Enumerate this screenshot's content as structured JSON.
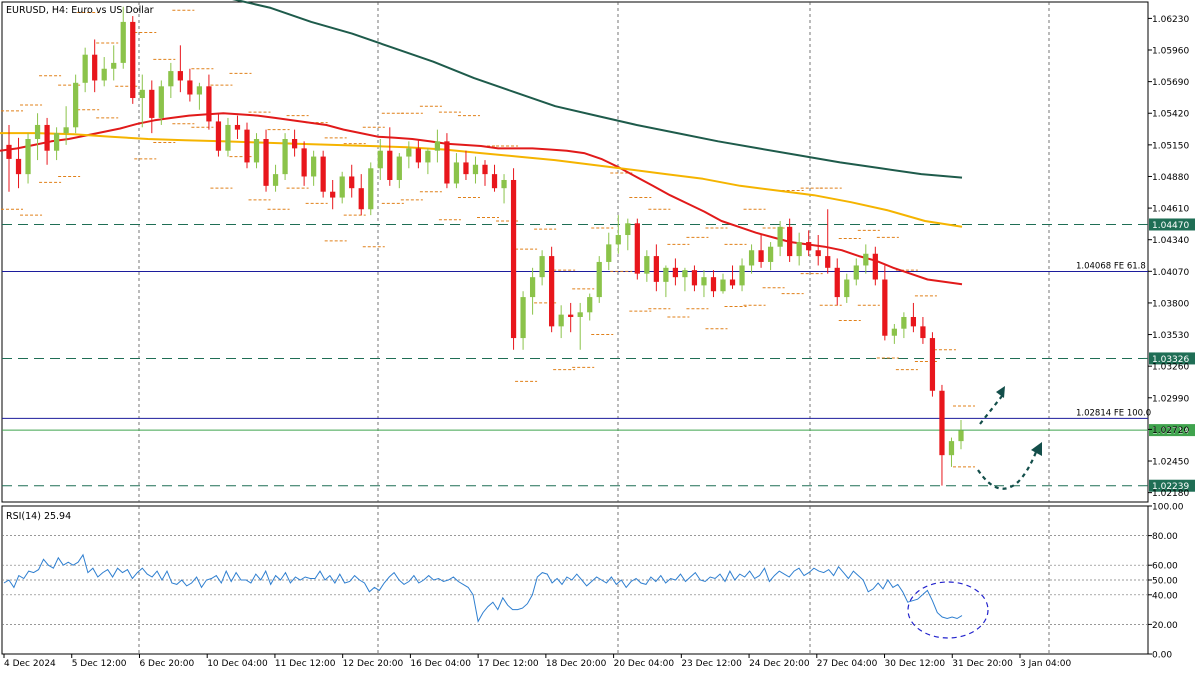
{
  "header": {
    "title": "EURUSD, H4:  Euro vs US Dollar",
    "rsi_label": "RSI(14) 25.94"
  },
  "colors": {
    "bull": "#8bc34a",
    "bear": "#e8161c",
    "ma_fast": "#e11a1a",
    "ma_mid": "#f5b400",
    "ma_slow": "#1e5b4b",
    "fe_line": "#1c1c9c",
    "dash_line": "#1f6e55",
    "current_line": "#3fa34d",
    "rsi_line": "#2f7fd0",
    "level_marks": "#e0801a",
    "annotation": "#134e4a",
    "ellipse": "#2222cc"
  },
  "chart_data": [
    {
      "type": "candlestick",
      "title": "EURUSD, H4:  Euro vs US Dollar",
      "ylim": [
        1.021,
        1.0637
      ],
      "y_ticks": [
        "1.06230",
        "1.05960",
        "1.05690",
        "1.05420",
        "1.05150",
        "1.04880",
        "1.04610",
        "1.04340",
        "1.04070",
        "1.03800",
        "1.03530",
        "1.03260",
        "1.02990",
        "1.02720",
        "1.02450",
        "1.02180"
      ],
      "x_labels": [
        "4 Dec 2024",
        "5 Dec 12:00",
        "6 Dec 20:00",
        "10 Dec 04:00",
        "11 Dec 12:00",
        "12 Dec 20:00",
        "16 Dec 04:00",
        "17 Dec 12:00",
        "18 Dec 20:00",
        "20 Dec 04:00",
        "23 Dec 12:00",
        "24 Dec 20:00",
        "27 Dec 04:00",
        "30 Dec 12:00",
        "31 Dec 20:00",
        "3 Jan 04:00"
      ],
      "price_levels": [
        {
          "label": "1.04470",
          "value": 1.0447,
          "style": "dashed",
          "boxed": true
        },
        {
          "label": "1.04068 FE 61.8",
          "value": 1.04068,
          "style": "solid",
          "boxed": false
        },
        {
          "label": "1.03326",
          "value": 1.03326,
          "style": "dashed",
          "boxed": true
        },
        {
          "label": "1.02814 FE 100.0",
          "value": 1.02814,
          "style": "solid",
          "boxed": false
        },
        {
          "label": "1.02714",
          "value": 1.02714,
          "style": "current",
          "boxed": true
        },
        {
          "label": "1.02239",
          "value": 1.02239,
          "style": "dashed",
          "boxed": true
        }
      ],
      "candles": [
        [
          1.0515,
          1.0532,
          1.0475,
          1.0503
        ],
        [
          1.0503,
          1.0521,
          1.0478,
          1.049
        ],
        [
          1.049,
          1.0525,
          1.0482,
          1.052
        ],
        [
          1.052,
          1.0542,
          1.0502,
          1.0532
        ],
        [
          1.0532,
          1.0538,
          1.0498,
          1.051
        ],
        [
          1.051,
          1.053,
          1.0502,
          1.0525
        ],
        [
          1.0525,
          1.0548,
          1.0515,
          1.053
        ],
        [
          1.053,
          1.0575,
          1.0525,
          1.0568
        ],
        [
          1.0568,
          1.0598,
          1.056,
          1.0592
        ],
        [
          1.0592,
          1.0605,
          1.056,
          1.057
        ],
        [
          1.057,
          1.059,
          1.0565,
          1.058
        ],
        [
          1.058,
          1.06,
          1.057,
          1.0585
        ],
        [
          1.0585,
          1.0633,
          1.058,
          1.062
        ],
        [
          1.062,
          1.0625,
          1.055,
          1.0555
        ],
        [
          1.0555,
          1.0575,
          1.053,
          1.0562
        ],
        [
          1.0562,
          1.057,
          1.0525,
          1.0538
        ],
        [
          1.0538,
          1.057,
          1.0532,
          1.0565
        ],
        [
          1.0565,
          1.0585,
          1.0555,
          1.0578
        ],
        [
          1.0578,
          1.06,
          1.056,
          1.057
        ],
        [
          1.057,
          1.058,
          1.0552,
          1.0558
        ],
        [
          1.0558,
          1.0568,
          1.0545,
          1.0565
        ],
        [
          1.0565,
          1.0575,
          1.0528,
          1.0535
        ],
        [
          1.0535,
          1.0542,
          1.0505,
          1.051
        ],
        [
          1.051,
          1.0538,
          1.0505,
          1.0532
        ],
        [
          1.0532,
          1.054,
          1.052,
          1.0528
        ],
        [
          1.0528,
          1.0534,
          1.0495,
          1.05
        ],
        [
          1.05,
          1.0525,
          1.0495,
          1.052
        ],
        [
          1.052,
          1.0528,
          1.0475,
          1.048
        ],
        [
          1.048,
          1.0498,
          1.0475,
          1.049
        ],
        [
          1.049,
          1.0525,
          1.0485,
          1.052
        ],
        [
          1.052,
          1.0528,
          1.0505,
          1.0512
        ],
        [
          1.0512,
          1.0518,
          1.048,
          1.0488
        ],
        [
          1.0488,
          1.051,
          1.048,
          1.0505
        ],
        [
          1.0505,
          1.051,
          1.047,
          1.0475
        ],
        [
          1.0475,
          1.0485,
          1.046,
          1.047
        ],
        [
          1.047,
          1.0492,
          1.0465,
          1.0488
        ],
        [
          1.0488,
          1.0498,
          1.047,
          1.0478
        ],
        [
          1.0478,
          1.049,
          1.0455,
          1.046
        ],
        [
          1.046,
          1.05,
          1.0455,
          1.0495
        ],
        [
          1.0495,
          1.052,
          1.0485,
          1.051
        ],
        [
          1.051,
          1.053,
          1.048,
          1.0485
        ],
        [
          1.0485,
          1.0508,
          1.0478,
          1.0505
        ],
        [
          1.0505,
          1.0518,
          1.0495,
          1.0512
        ],
        [
          1.0512,
          1.052,
          1.0495,
          1.05
        ],
        [
          1.05,
          1.0512,
          1.049,
          1.051
        ],
        [
          1.051,
          1.0528,
          1.05,
          1.0518
        ],
        [
          1.0518,
          1.0525,
          1.0478,
          1.0482
        ],
        [
          1.0482,
          1.0508,
          1.0478,
          1.05
        ],
        [
          1.05,
          1.051,
          1.0485,
          1.049
        ],
        [
          1.049,
          1.0505,
          1.0482,
          1.0498
        ],
        [
          1.0498,
          1.0502,
          1.048,
          1.049
        ],
        [
          1.049,
          1.0498,
          1.0475,
          1.0478
        ],
        [
          1.0478,
          1.049,
          1.0465,
          1.0485
        ],
        [
          1.0485,
          1.0495,
          1.034,
          1.035
        ],
        [
          1.035,
          1.039,
          1.034,
          1.0385
        ],
        [
          1.0385,
          1.041,
          1.037,
          1.0402
        ],
        [
          1.0402,
          1.0425,
          1.0395,
          1.042
        ],
        [
          1.042,
          1.0428,
          1.0355,
          1.036
        ],
        [
          1.036,
          1.0378,
          1.035,
          1.037
        ],
        [
          1.037,
          1.038,
          1.0355,
          1.0368
        ],
        [
          1.0368,
          1.038,
          1.034,
          1.0372
        ],
        [
          1.0372,
          1.0388,
          1.0365,
          1.0385
        ],
        [
          1.0385,
          1.042,
          1.038,
          1.0415
        ],
        [
          1.0415,
          1.044,
          1.0408,
          1.043
        ],
        [
          1.043,
          1.0455,
          1.0422,
          1.0438
        ],
        [
          1.0438,
          1.0452,
          1.0425,
          1.0448
        ],
        [
          1.0448,
          1.0452,
          1.04,
          1.0405
        ],
        [
          1.0405,
          1.0425,
          1.0398,
          1.042
        ],
        [
          1.042,
          1.043,
          1.039,
          1.0398
        ],
        [
          1.0398,
          1.0412,
          1.0385,
          1.041
        ],
        [
          1.041,
          1.0418,
          1.0395,
          1.0402
        ],
        [
          1.0402,
          1.041,
          1.039,
          1.0408
        ],
        [
          1.0408,
          1.0412,
          1.039,
          1.0395
        ],
        [
          1.0395,
          1.0408,
          1.0385,
          1.0402
        ],
        [
          1.0402,
          1.0408,
          1.0385,
          1.039
        ],
        [
          1.039,
          1.0405,
          1.0388,
          1.04
        ],
        [
          1.04,
          1.0412,
          1.0392,
          1.0395
        ],
        [
          1.0395,
          1.0418,
          1.039,
          1.0412
        ],
        [
          1.0412,
          1.043,
          1.0405,
          1.0425
        ],
        [
          1.0425,
          1.0438,
          1.041,
          1.0415
        ],
        [
          1.0415,
          1.0432,
          1.0408,
          1.0428
        ],
        [
          1.0428,
          1.045,
          1.042,
          1.0445
        ],
        [
          1.0445,
          1.0452,
          1.0415,
          1.042
        ],
        [
          1.042,
          1.044,
          1.0412,
          1.0432
        ],
        [
          1.0432,
          1.0442,
          1.042,
          1.0425
        ],
        [
          1.0425,
          1.0438,
          1.0412,
          1.042
        ],
        [
          1.042,
          1.046,
          1.0405,
          1.041
        ],
        [
          1.041,
          1.0418,
          1.0378,
          1.0385
        ],
        [
          1.0385,
          1.0405,
          1.038,
          1.04
        ],
        [
          1.04,
          1.0418,
          1.0395,
          1.0412
        ],
        [
          1.0412,
          1.043,
          1.0405,
          1.0422
        ],
        [
          1.0422,
          1.0428,
          1.0395,
          1.04
        ],
        [
          1.04,
          1.0412,
          1.0348,
          1.0352
        ],
        [
          1.0352,
          1.0362,
          1.0345,
          1.0358
        ],
        [
          1.0358,
          1.0372,
          1.035,
          1.0368
        ],
        [
          1.0368,
          1.038,
          1.0355,
          1.036
        ],
        [
          1.036,
          1.0368,
          1.0345,
          1.035
        ],
        [
          1.035,
          1.0355,
          1.03,
          1.0305
        ],
        [
          1.0305,
          1.031,
          1.0224,
          1.025
        ],
        [
          1.025,
          1.0265,
          1.024,
          1.0262
        ],
        [
          1.0262,
          1.028,
          1.0255,
          1.0271
        ]
      ],
      "ma_fast": [
        1.051,
        1.0512,
        1.0515,
        1.0518,
        1.052,
        1.0523,
        1.0526,
        1.0529,
        1.0533,
        1.0536,
        1.0538,
        1.054,
        1.0541,
        1.0542,
        1.0541,
        1.054,
        1.0538,
        1.0536,
        1.0534,
        1.0532,
        1.0528,
        1.0525,
        1.0522,
        1.0521,
        1.052,
        1.0518,
        1.0516,
        1.0515,
        1.0514,
        1.0512,
        1.0512,
        1.0512,
        1.0511,
        1.051,
        1.0508,
        1.0503,
        1.0496,
        1.0488,
        1.048,
        1.0472,
        1.0465,
        1.0458,
        1.045,
        1.0445,
        1.044,
        1.0436,
        1.0432,
        1.043,
        1.0428,
        1.0425,
        1.042,
        1.0416,
        1.041,
        1.0405,
        1.04,
        1.0398,
        1.0396
      ],
      "ma_mid": [
        1.0525,
        1.0525,
        1.0524,
        1.0522,
        1.052,
        1.0519,
        1.0518,
        1.0517,
        1.0516,
        1.0515,
        1.0514,
        1.0513,
        1.0511,
        1.0508,
        1.0505,
        1.0502,
        1.0498,
        1.0494,
        1.049,
        1.0486,
        1.048,
        1.0476,
        1.0472,
        1.0466,
        1.0459,
        1.045,
        1.0445
      ],
      "ma_slow": [
        1.064,
        1.0632,
        1.062,
        1.061,
        1.0598,
        1.0586,
        1.0572,
        1.056,
        1.0548,
        1.054,
        1.0532,
        1.0525,
        1.0518,
        1.0512,
        1.0506,
        1.05,
        1.0495,
        1.049,
        1.0487
      ],
      "annotations": [
        "dashed arrow up-right",
        "dashed curved arrow up-right",
        "ellipse around RSI lows"
      ]
    },
    {
      "type": "line",
      "title": "RSI(14) 25.94",
      "ylim": [
        0,
        100
      ],
      "y_ticks": [
        "100.00",
        "80.00",
        "60.00",
        "50.00",
        "40.00",
        "20.00",
        "0.00"
      ],
      "reference_levels": [
        80,
        60,
        50,
        40,
        20
      ],
      "values": [
        48,
        50,
        45,
        53,
        51,
        56,
        55,
        57,
        64,
        60,
        58,
        65,
        60,
        62,
        60,
        62,
        67,
        55,
        58,
        52,
        55,
        57,
        52,
        58,
        55,
        57,
        51,
        55,
        58,
        54,
        52,
        56,
        50,
        56,
        48,
        47,
        50,
        46,
        48,
        52,
        45,
        50,
        51,
        53,
        48,
        56,
        49,
        55,
        50,
        50,
        48,
        54,
        50,
        56,
        47,
        53,
        50,
        55,
        48,
        52,
        50,
        52,
        51,
        51,
        56,
        50,
        53,
        48,
        54,
        48,
        49,
        53,
        50,
        48,
        42,
        45,
        43,
        48,
        52,
        55,
        50,
        47,
        49,
        53,
        48,
        50,
        53,
        50,
        51,
        49,
        50,
        52,
        49,
        47,
        45,
        40,
        22,
        28,
        32,
        35,
        30,
        38,
        33,
        30,
        30,
        31,
        34,
        40,
        52,
        55,
        54,
        48,
        51,
        47,
        52,
        50,
        54,
        50,
        46,
        49,
        52,
        50,
        48,
        52,
        47,
        50,
        45,
        49,
        51,
        48,
        47,
        52,
        49,
        53,
        48,
        51,
        50,
        54,
        49,
        52,
        55,
        50,
        49,
        52,
        51,
        54,
        49,
        56,
        50,
        54,
        52,
        56,
        51,
        53,
        58,
        49,
        53,
        56,
        54,
        52,
        56,
        58,
        53,
        55,
        58,
        56,
        55,
        57,
        53,
        59,
        55,
        51,
        56,
        53,
        50,
        42,
        44,
        48,
        44,
        50,
        45,
        47,
        42,
        35,
        36,
        37,
        40,
        43,
        36,
        28,
        25,
        24,
        25,
        24,
        25.94
      ]
    }
  ]
}
